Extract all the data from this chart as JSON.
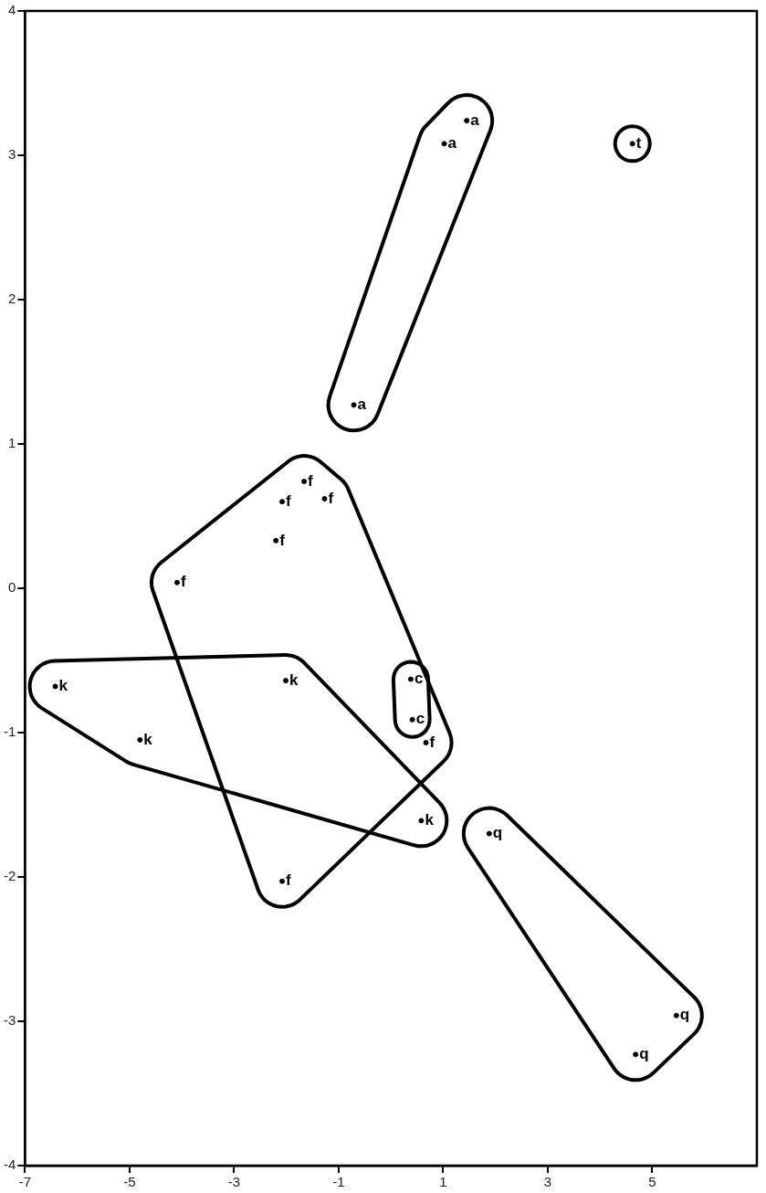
{
  "chart_data": {
    "type": "scatter",
    "xlim": [
      -7,
      7
    ],
    "ylim": [
      -4,
      4
    ],
    "xticks": [
      -7,
      -5,
      -3,
      -1,
      1,
      3,
      5
    ],
    "yticks": [
      -4,
      -3,
      -2,
      -1,
      0,
      1,
      2,
      3,
      4
    ],
    "marker": "circle",
    "series": [
      {
        "name": "a",
        "color": "#000000",
        "x": [
          1.45,
          1.02,
          -0.71
        ],
        "values": [
          3.24,
          3.08,
          1.27
        ]
      },
      {
        "name": "t",
        "color": "#000000",
        "x": [
          4.62
        ],
        "values": [
          3.08
        ]
      },
      {
        "name": "f",
        "color": "#000000",
        "x": [
          -1.66,
          -2.08,
          -1.27,
          -2.2,
          -4.09,
          0.67,
          -2.08
        ],
        "values": [
          0.74,
          0.6,
          0.62,
          0.33,
          0.04,
          -1.07,
          -2.03
        ]
      },
      {
        "name": "k",
        "color": "#000000",
        "x": [
          -6.42,
          -4.8,
          -2.01,
          0.58
        ],
        "values": [
          -0.68,
          -1.05,
          -0.64,
          -1.61
        ]
      },
      {
        "name": "c",
        "color": "#000000",
        "x": [
          0.38,
          0.41
        ],
        "values": [
          -0.63,
          -0.91
        ]
      },
      {
        "name": "q",
        "color": "#000000",
        "x": [
          1.88,
          5.46,
          4.68
        ],
        "values": [
          -1.7,
          -2.96,
          -3.23
        ]
      }
    ]
  }
}
